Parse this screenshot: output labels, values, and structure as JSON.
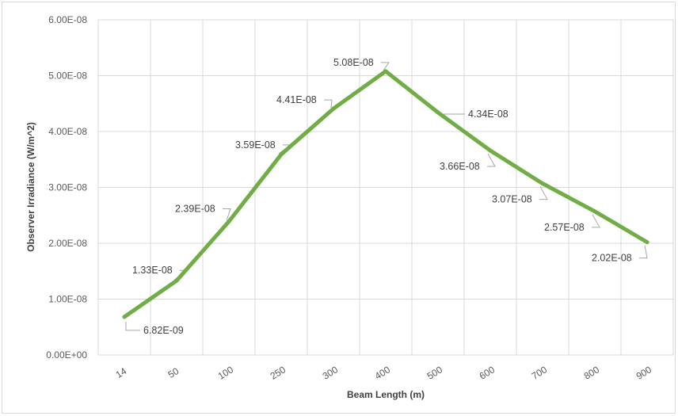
{
  "chart_data": {
    "type": "line",
    "title": "",
    "xlabel": "Beam Length (m)",
    "ylabel": "Observer Irradiance (W/m^2)",
    "categories": [
      "14",
      "50",
      "100",
      "250",
      "300",
      "400",
      "500",
      "600",
      "700",
      "800",
      "900"
    ],
    "series": [
      {
        "values": [
          6.82e-09,
          1.33e-08,
          2.39e-08,
          3.59e-08,
          4.41e-08,
          5.08e-08,
          4.34e-08,
          3.66e-08,
          3.07e-08,
          2.57e-08,
          2.02e-08
        ],
        "data_labels": [
          "6.82E-09",
          "1.33E-08",
          "2.39E-08",
          "3.59E-08",
          "4.41E-08",
          "5.08E-08",
          "4.34E-08",
          "3.66E-08",
          "3.07E-08",
          "2.57E-08",
          "2.02E-08"
        ]
      }
    ],
    "ylim": [
      0,
      6e-08
    ],
    "yticks": [
      "0.00E+00",
      "1.00E-08",
      "2.00E-08",
      "3.00E-08",
      "4.00E-08",
      "5.00E-08",
      "6.00E-08"
    ],
    "grid": true,
    "legend": "none",
    "colors": {
      "line": "#70ad47",
      "grid": "#d9d9d9",
      "leader": "#a6a6a6"
    }
  }
}
